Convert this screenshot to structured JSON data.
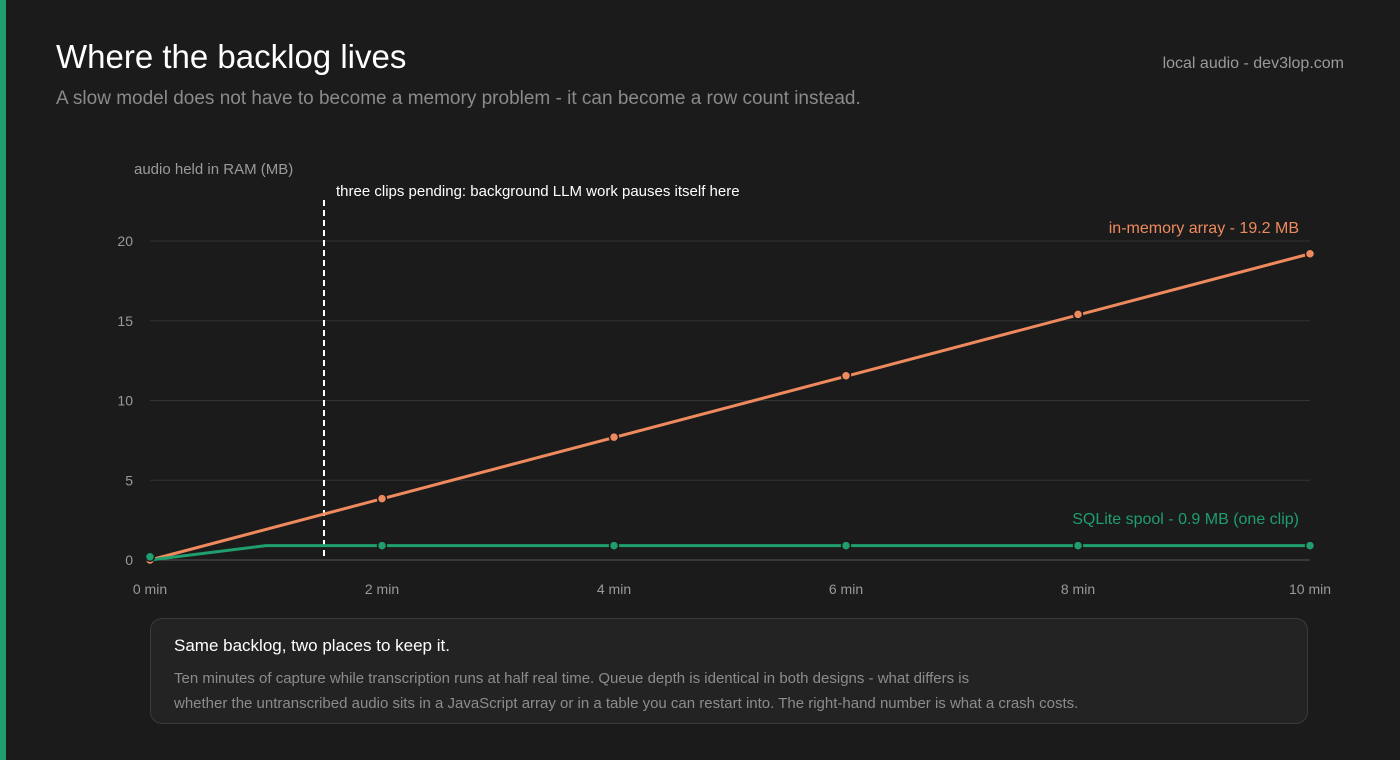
{
  "header": {
    "title": "Where the backlog lives",
    "subtitle": "A slow model does not have to become a memory problem - it can become a row count instead.",
    "source": "local audio - dev3lop.com"
  },
  "colors": {
    "background": "#1b1b1b",
    "accent": "#1f9e6e",
    "memory": "#ee8a5e",
    "sqlite": "#1f9e6e",
    "grid": "#333333",
    "axis_text": "#9a9a9a"
  },
  "chart_data": {
    "type": "line",
    "ylabel": "audio held in RAM (MB)",
    "xlabel": "",
    "xlim": [
      0,
      10
    ],
    "ylim": [
      0,
      20
    ],
    "x_ticks": [
      0,
      2,
      4,
      6,
      8,
      10
    ],
    "x_tick_labels": [
      "0 min",
      "2 min",
      "4 min",
      "6 min",
      "8 min",
      "10 min"
    ],
    "y_ticks": [
      0,
      5,
      10,
      15,
      20
    ],
    "y_tick_labels": [
      "0",
      "5",
      "10",
      "15",
      "20"
    ],
    "grid": true,
    "series": [
      {
        "name": "in-memory array",
        "label": "in-memory array - 19.2 MB",
        "color": "#ee8a5e",
        "x": [
          0,
          2,
          4,
          6,
          8,
          10
        ],
        "y": [
          0,
          3.85,
          7.7,
          11.55,
          15.4,
          19.2
        ],
        "line_x": [
          0,
          10
        ],
        "line_y": [
          0,
          19.2
        ]
      },
      {
        "name": "SQLite spool",
        "label": "SQLite spool - 0.9 MB (one clip)",
        "color": "#1f9e6e",
        "x": [
          0,
          2,
          4,
          6,
          8,
          10
        ],
        "y": [
          0.2,
          0.9,
          0.9,
          0.9,
          0.9,
          0.9
        ],
        "line_x": [
          0,
          1,
          10
        ],
        "line_y": [
          0,
          0.9,
          0.9
        ]
      }
    ],
    "annotations": [
      {
        "x": 1.5,
        "text": "three clips pending: background LLM work pauses itself here"
      }
    ]
  },
  "card": {
    "title": "Same backlog, two places to keep it.",
    "body_line1": "Ten minutes of capture while transcription runs at half real time. Queue depth is identical in both designs - what differs is",
    "body_line2": "whether the untranscribed audio sits in a JavaScript array or in a table you can restart into. The right-hand number is what a crash costs."
  }
}
